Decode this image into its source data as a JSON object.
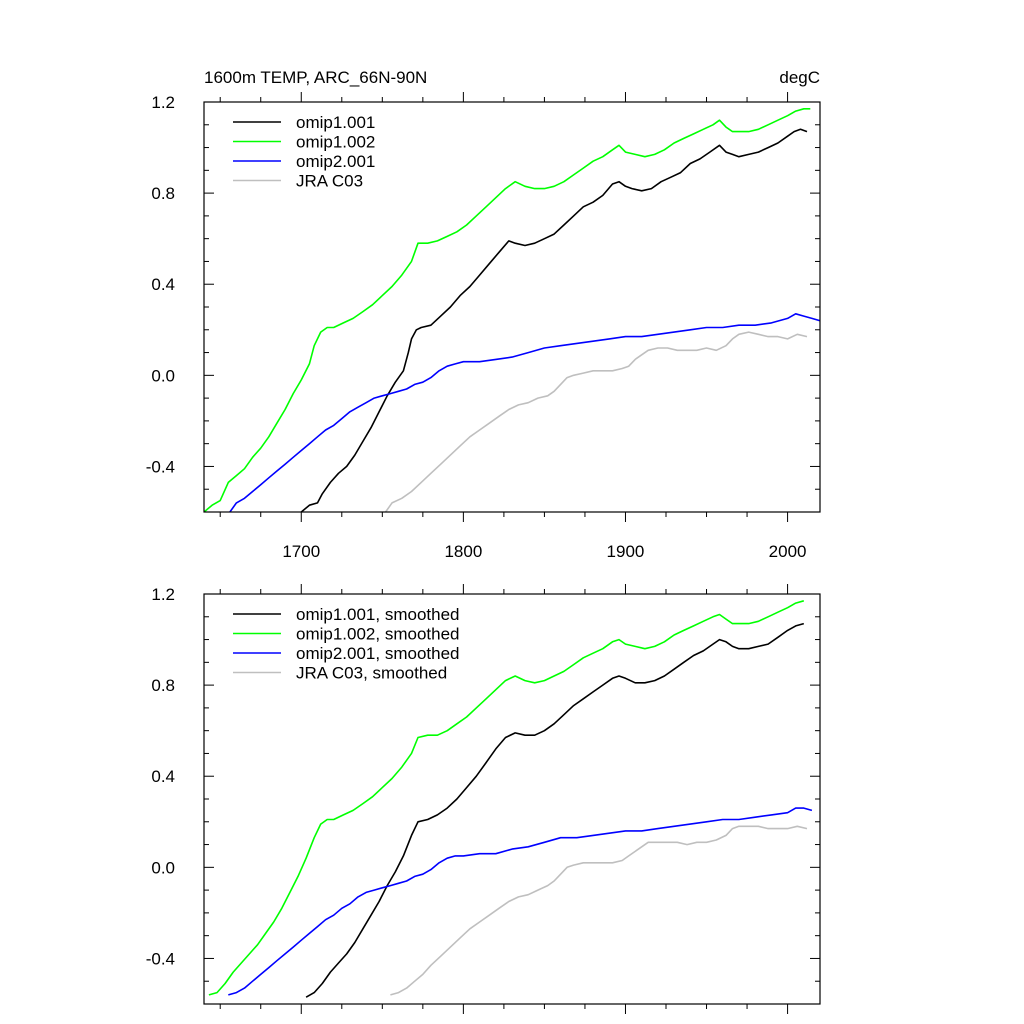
{
  "chart_data": [
    {
      "type": "line",
      "title_left": "1600m TEMP, ARC_66N-90N",
      "title_right": "degC",
      "xlim": [
        1640,
        2020
      ],
      "ylim": [
        -0.6,
        1.2
      ],
      "xticks": [
        1700,
        1800,
        1900,
        2000
      ],
      "xtick_labels": [
        "1700",
        "1800",
        "1900",
        "2000"
      ],
      "yticks": [
        -0.4,
        0.0,
        0.4,
        0.8,
        1.2
      ],
      "ytick_labels": [
        "-0.4",
        "0.0",
        "0.4",
        "0.8",
        "1.2"
      ],
      "legend_position": "top-left",
      "series": [
        {
          "name": "omip1.001",
          "color": "#000000",
          "x": [
            1700,
            1705,
            1710,
            1713,
            1718,
            1723,
            1728,
            1733,
            1738,
            1743,
            1748,
            1753,
            1758,
            1763,
            1766,
            1768,
            1771,
            1774,
            1780,
            1786,
            1792,
            1798,
            1804,
            1810,
            1816,
            1822,
            1828,
            1832,
            1838,
            1844,
            1850,
            1856,
            1862,
            1868,
            1874,
            1880,
            1886,
            1892,
            1896,
            1900,
            1904,
            1910,
            1916,
            1922,
            1928,
            1934,
            1940,
            1946,
            1952,
            1958,
            1962,
            1966,
            1970,
            1976,
            1982,
            1988,
            1994,
            2000,
            2004,
            2008,
            2012
          ],
          "y": [
            -0.6,
            -0.57,
            -0.56,
            -0.52,
            -0.47,
            -0.43,
            -0.4,
            -0.35,
            -0.29,
            -0.23,
            -0.16,
            -0.09,
            -0.03,
            0.02,
            0.1,
            0.16,
            0.2,
            0.21,
            0.22,
            0.26,
            0.3,
            0.35,
            0.39,
            0.44,
            0.49,
            0.54,
            0.59,
            0.58,
            0.57,
            0.58,
            0.6,
            0.62,
            0.66,
            0.7,
            0.74,
            0.76,
            0.79,
            0.84,
            0.85,
            0.83,
            0.82,
            0.81,
            0.82,
            0.85,
            0.87,
            0.89,
            0.93,
            0.95,
            0.98,
            1.01,
            0.98,
            0.97,
            0.96,
            0.97,
            0.98,
            1.0,
            1.02,
            1.05,
            1.07,
            1.08,
            1.07
          ]
        },
        {
          "name": "omip1.002",
          "color": "#00ff00",
          "x": [
            1640,
            1645,
            1650,
            1655,
            1660,
            1665,
            1670,
            1675,
            1680,
            1685,
            1690,
            1695,
            1700,
            1705,
            1708,
            1712,
            1716,
            1720,
            1726,
            1732,
            1738,
            1744,
            1750,
            1756,
            1762,
            1768,
            1772,
            1778,
            1784,
            1790,
            1796,
            1802,
            1808,
            1814,
            1820,
            1826,
            1832,
            1838,
            1844,
            1850,
            1856,
            1862,
            1868,
            1874,
            1880,
            1886,
            1892,
            1896,
            1900,
            1906,
            1912,
            1918,
            1924,
            1930,
            1936,
            1942,
            1948,
            1954,
            1958,
            1962,
            1966,
            1970,
            1976,
            1982,
            1988,
            1994,
            2000,
            2005,
            2010,
            2014
          ],
          "y": [
            -0.6,
            -0.57,
            -0.55,
            -0.47,
            -0.44,
            -0.41,
            -0.36,
            -0.32,
            -0.27,
            -0.21,
            -0.15,
            -0.08,
            -0.02,
            0.05,
            0.13,
            0.19,
            0.21,
            0.21,
            0.23,
            0.25,
            0.28,
            0.31,
            0.35,
            0.39,
            0.44,
            0.5,
            0.58,
            0.58,
            0.59,
            0.61,
            0.63,
            0.66,
            0.7,
            0.74,
            0.78,
            0.82,
            0.85,
            0.83,
            0.82,
            0.82,
            0.83,
            0.85,
            0.88,
            0.91,
            0.94,
            0.96,
            0.99,
            1.01,
            0.98,
            0.97,
            0.96,
            0.97,
            0.99,
            1.02,
            1.04,
            1.06,
            1.08,
            1.1,
            1.12,
            1.09,
            1.07,
            1.07,
            1.07,
            1.08,
            1.1,
            1.12,
            1.14,
            1.16,
            1.17,
            1.17
          ]
        },
        {
          "name": "omip2.001",
          "color": "#0000ff",
          "x": [
            1656,
            1660,
            1665,
            1670,
            1675,
            1680,
            1685,
            1690,
            1695,
            1700,
            1705,
            1710,
            1715,
            1720,
            1725,
            1730,
            1735,
            1740,
            1745,
            1750,
            1755,
            1760,
            1765,
            1770,
            1775,
            1780,
            1785,
            1790,
            1795,
            1800,
            1810,
            1820,
            1830,
            1840,
            1850,
            1860,
            1870,
            1880,
            1890,
            1900,
            1910,
            1920,
            1930,
            1940,
            1950,
            1960,
            1970,
            1980,
            1990,
            2000,
            2005,
            2010,
            2015,
            2020
          ],
          "y": [
            -0.6,
            -0.56,
            -0.54,
            -0.51,
            -0.48,
            -0.45,
            -0.42,
            -0.39,
            -0.36,
            -0.33,
            -0.3,
            -0.27,
            -0.24,
            -0.22,
            -0.19,
            -0.16,
            -0.14,
            -0.12,
            -0.1,
            -0.09,
            -0.08,
            -0.07,
            -0.06,
            -0.04,
            -0.03,
            -0.01,
            0.02,
            0.04,
            0.05,
            0.06,
            0.06,
            0.07,
            0.08,
            0.1,
            0.12,
            0.13,
            0.14,
            0.15,
            0.16,
            0.17,
            0.17,
            0.18,
            0.19,
            0.2,
            0.21,
            0.21,
            0.22,
            0.22,
            0.23,
            0.25,
            0.27,
            0.26,
            0.25,
            0.24
          ]
        },
        {
          "name": "JRA C03",
          "color": "#bfbfbf",
          "x": [
            1752,
            1756,
            1762,
            1768,
            1774,
            1780,
            1786,
            1792,
            1798,
            1804,
            1810,
            1816,
            1822,
            1828,
            1834,
            1840,
            1846,
            1852,
            1856,
            1860,
            1864,
            1868,
            1874,
            1880,
            1886,
            1892,
            1898,
            1902,
            1906,
            1910,
            1914,
            1920,
            1926,
            1932,
            1938,
            1944,
            1950,
            1956,
            1962,
            1966,
            1970,
            1976,
            1982,
            1988,
            1994,
            2000,
            2006,
            2012
          ],
          "y": [
            -0.6,
            -0.56,
            -0.54,
            -0.51,
            -0.47,
            -0.43,
            -0.39,
            -0.35,
            -0.31,
            -0.27,
            -0.24,
            -0.21,
            -0.18,
            -0.15,
            -0.13,
            -0.12,
            -0.1,
            -0.09,
            -0.07,
            -0.04,
            -0.01,
            0.0,
            0.01,
            0.02,
            0.02,
            0.02,
            0.03,
            0.04,
            0.07,
            0.09,
            0.11,
            0.12,
            0.12,
            0.11,
            0.11,
            0.11,
            0.12,
            0.11,
            0.13,
            0.16,
            0.18,
            0.19,
            0.18,
            0.17,
            0.17,
            0.16,
            0.18,
            0.17
          ]
        }
      ]
    },
    {
      "type": "line",
      "xlim": [
        1640,
        2020
      ],
      "ylim": [
        -0.6,
        1.2
      ],
      "xticks": [
        1700,
        1800,
        1900,
        2000
      ],
      "yticks": [
        -0.4,
        0.0,
        0.4,
        0.8,
        1.2
      ],
      "ytick_labels": [
        "-0.4",
        "0.0",
        "0.4",
        "0.8",
        "1.2"
      ],
      "legend_position": "top-left",
      "series": [
        {
          "name": "omip1.001, smoothed",
          "color": "#000000",
          "x": [
            1703,
            1708,
            1713,
            1718,
            1723,
            1728,
            1733,
            1738,
            1743,
            1748,
            1753,
            1758,
            1763,
            1768,
            1772,
            1778,
            1784,
            1790,
            1796,
            1802,
            1808,
            1814,
            1820,
            1826,
            1832,
            1838,
            1844,
            1850,
            1856,
            1862,
            1868,
            1874,
            1880,
            1886,
            1892,
            1896,
            1900,
            1906,
            1912,
            1918,
            1924,
            1930,
            1936,
            1942,
            1948,
            1954,
            1958,
            1962,
            1966,
            1970,
            1976,
            1982,
            1988,
            1994,
            2000,
            2005,
            2010
          ],
          "y": [
            -0.57,
            -0.55,
            -0.51,
            -0.46,
            -0.42,
            -0.38,
            -0.33,
            -0.27,
            -0.21,
            -0.15,
            -0.08,
            -0.02,
            0.05,
            0.14,
            0.2,
            0.21,
            0.23,
            0.26,
            0.3,
            0.35,
            0.4,
            0.46,
            0.52,
            0.57,
            0.59,
            0.58,
            0.58,
            0.6,
            0.63,
            0.67,
            0.71,
            0.74,
            0.77,
            0.8,
            0.83,
            0.84,
            0.83,
            0.81,
            0.81,
            0.82,
            0.84,
            0.87,
            0.9,
            0.93,
            0.95,
            0.98,
            1.0,
            0.99,
            0.97,
            0.96,
            0.96,
            0.97,
            0.98,
            1.01,
            1.04,
            1.06,
            1.07
          ]
        },
        {
          "name": "omip1.002, smoothed",
          "color": "#00ff00",
          "x": [
            1643,
            1648,
            1653,
            1658,
            1663,
            1668,
            1673,
            1678,
            1683,
            1688,
            1693,
            1698,
            1703,
            1708,
            1712,
            1716,
            1720,
            1726,
            1732,
            1738,
            1744,
            1750,
            1756,
            1762,
            1768,
            1772,
            1778,
            1784,
            1790,
            1796,
            1802,
            1808,
            1814,
            1820,
            1826,
            1832,
            1838,
            1844,
            1850,
            1856,
            1862,
            1868,
            1874,
            1880,
            1886,
            1892,
            1896,
            1900,
            1906,
            1912,
            1918,
            1924,
            1930,
            1936,
            1942,
            1948,
            1954,
            1958,
            1962,
            1966,
            1970,
            1976,
            1982,
            1988,
            1994,
            2000,
            2005,
            2010
          ],
          "y": [
            -0.56,
            -0.55,
            -0.51,
            -0.46,
            -0.42,
            -0.38,
            -0.34,
            -0.29,
            -0.24,
            -0.18,
            -0.11,
            -0.04,
            0.04,
            0.13,
            0.19,
            0.21,
            0.21,
            0.23,
            0.25,
            0.28,
            0.31,
            0.35,
            0.39,
            0.44,
            0.5,
            0.57,
            0.58,
            0.58,
            0.6,
            0.63,
            0.66,
            0.7,
            0.74,
            0.78,
            0.82,
            0.84,
            0.82,
            0.81,
            0.82,
            0.84,
            0.86,
            0.89,
            0.92,
            0.94,
            0.96,
            0.99,
            1.0,
            0.98,
            0.97,
            0.96,
            0.97,
            0.99,
            1.02,
            1.04,
            1.06,
            1.08,
            1.1,
            1.11,
            1.09,
            1.07,
            1.07,
            1.07,
            1.08,
            1.1,
            1.12,
            1.14,
            1.16,
            1.17
          ]
        },
        {
          "name": "omip2.001, smoothed",
          "color": "#0000ff",
          "x": [
            1655,
            1660,
            1665,
            1670,
            1675,
            1680,
            1685,
            1690,
            1695,
            1700,
            1705,
            1710,
            1715,
            1720,
            1725,
            1730,
            1735,
            1740,
            1745,
            1750,
            1755,
            1760,
            1765,
            1770,
            1775,
            1780,
            1785,
            1790,
            1795,
            1800,
            1810,
            1820,
            1830,
            1840,
            1850,
            1860,
            1870,
            1880,
            1890,
            1900,
            1910,
            1920,
            1930,
            1940,
            1950,
            1960,
            1970,
            1980,
            1990,
            2000,
            2005,
            2010,
            2015
          ],
          "y": [
            -0.56,
            -0.55,
            -0.53,
            -0.5,
            -0.47,
            -0.44,
            -0.41,
            -0.38,
            -0.35,
            -0.32,
            -0.29,
            -0.26,
            -0.23,
            -0.21,
            -0.18,
            -0.16,
            -0.13,
            -0.11,
            -0.1,
            -0.09,
            -0.08,
            -0.07,
            -0.06,
            -0.04,
            -0.03,
            -0.01,
            0.02,
            0.04,
            0.05,
            0.05,
            0.06,
            0.06,
            0.08,
            0.09,
            0.11,
            0.13,
            0.13,
            0.14,
            0.15,
            0.16,
            0.16,
            0.17,
            0.18,
            0.19,
            0.2,
            0.21,
            0.21,
            0.22,
            0.23,
            0.24,
            0.26,
            0.26,
            0.25
          ]
        },
        {
          "name": "JRA C03, smoothed",
          "color": "#bfbfbf",
          "x": [
            1755,
            1760,
            1765,
            1770,
            1775,
            1780,
            1786,
            1792,
            1798,
            1804,
            1810,
            1816,
            1822,
            1828,
            1834,
            1840,
            1846,
            1852,
            1856,
            1860,
            1864,
            1868,
            1874,
            1880,
            1886,
            1892,
            1898,
            1902,
            1906,
            1910,
            1914,
            1920,
            1926,
            1932,
            1938,
            1944,
            1950,
            1956,
            1962,
            1966,
            1970,
            1976,
            1982,
            1988,
            1994,
            2000,
            2006,
            2012
          ],
          "y": [
            -0.56,
            -0.55,
            -0.53,
            -0.5,
            -0.47,
            -0.43,
            -0.39,
            -0.35,
            -0.31,
            -0.27,
            -0.24,
            -0.21,
            -0.18,
            -0.15,
            -0.13,
            -0.12,
            -0.1,
            -0.08,
            -0.06,
            -0.03,
            0.0,
            0.01,
            0.02,
            0.02,
            0.02,
            0.02,
            0.03,
            0.05,
            0.07,
            0.09,
            0.11,
            0.11,
            0.11,
            0.11,
            0.1,
            0.11,
            0.11,
            0.12,
            0.14,
            0.17,
            0.18,
            0.18,
            0.18,
            0.17,
            0.17,
            0.17,
            0.18,
            0.17
          ]
        }
      ]
    }
  ]
}
